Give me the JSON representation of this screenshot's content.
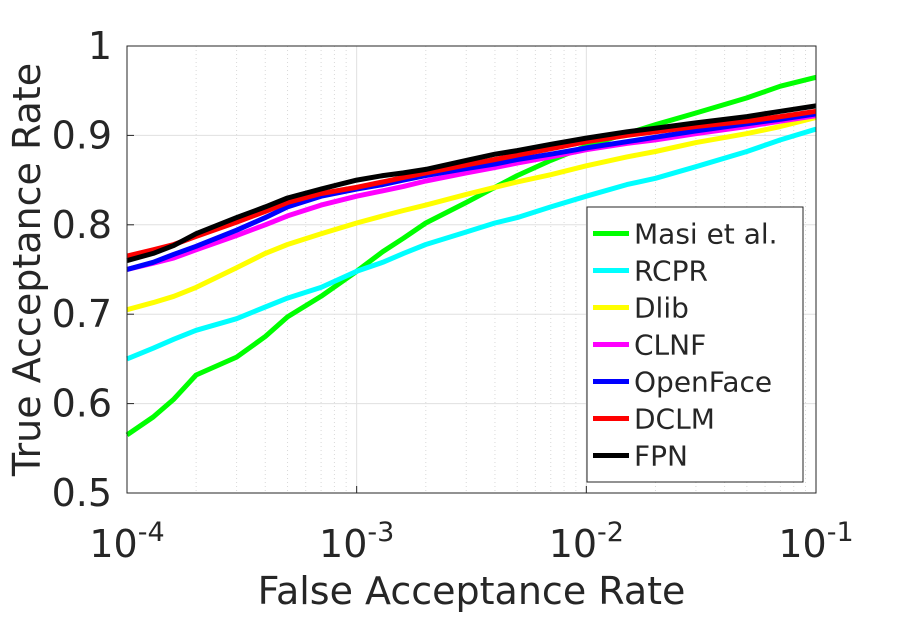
{
  "chart_data": {
    "type": "line",
    "title": "",
    "xlabel": "False Acceptance Rate",
    "ylabel": "True Acceptance Rate",
    "xscale": "log",
    "xlim": [
      0.0001,
      0.1
    ],
    "ylim": [
      0.5,
      1.0
    ],
    "grid": true,
    "legend_position": "bottom-right",
    "x_ticks": [
      {
        "value": 0.0001,
        "base": "10",
        "exp": "-4"
      },
      {
        "value": 0.001,
        "base": "10",
        "exp": "-3"
      },
      {
        "value": 0.01,
        "base": "10",
        "exp": "-2"
      },
      {
        "value": 0.1,
        "base": "10",
        "exp": "-1"
      }
    ],
    "y_ticks": [
      {
        "value": 0.5,
        "label": "0.5"
      },
      {
        "value": 0.6,
        "label": "0.6"
      },
      {
        "value": 0.7,
        "label": "0.7"
      },
      {
        "value": 0.8,
        "label": "0.8"
      },
      {
        "value": 0.9,
        "label": "0.9"
      },
      {
        "value": 1.0,
        "label": "1"
      }
    ],
    "series": [
      {
        "name": "Masi et al.",
        "color": "#00ff00",
        "x": [
          0.0001,
          0.00013,
          0.00016,
          0.0002,
          0.0003,
          0.0004,
          0.0005,
          0.0007,
          0.001,
          0.0013,
          0.0016,
          0.002,
          0.003,
          0.004,
          0.005,
          0.007,
          0.01,
          0.015,
          0.02,
          0.03,
          0.05,
          0.07,
          0.1
        ],
        "y": [
          0.565,
          0.585,
          0.605,
          0.632,
          0.652,
          0.675,
          0.697,
          0.72,
          0.748,
          0.77,
          0.785,
          0.802,
          0.825,
          0.842,
          0.855,
          0.872,
          0.888,
          0.902,
          0.912,
          0.925,
          0.942,
          0.955,
          0.965
        ]
      },
      {
        "name": "RCPR",
        "color": "#00ffff",
        "x": [
          0.0001,
          0.00013,
          0.00016,
          0.0002,
          0.0003,
          0.0004,
          0.0005,
          0.0007,
          0.001,
          0.0013,
          0.0016,
          0.002,
          0.003,
          0.004,
          0.005,
          0.007,
          0.01,
          0.015,
          0.02,
          0.03,
          0.05,
          0.07,
          0.1
        ],
        "y": [
          0.65,
          0.662,
          0.672,
          0.682,
          0.695,
          0.708,
          0.718,
          0.73,
          0.748,
          0.758,
          0.768,
          0.778,
          0.792,
          0.802,
          0.808,
          0.82,
          0.832,
          0.845,
          0.852,
          0.865,
          0.882,
          0.895,
          0.907
        ]
      },
      {
        "name": "Dlib",
        "color": "#ffff00",
        "x": [
          0.0001,
          0.00013,
          0.00016,
          0.0002,
          0.0003,
          0.0004,
          0.0005,
          0.0007,
          0.001,
          0.0013,
          0.0016,
          0.002,
          0.003,
          0.004,
          0.005,
          0.007,
          0.01,
          0.015,
          0.02,
          0.03,
          0.05,
          0.07,
          0.1
        ],
        "y": [
          0.705,
          0.713,
          0.72,
          0.73,
          0.752,
          0.768,
          0.778,
          0.79,
          0.802,
          0.81,
          0.816,
          0.822,
          0.834,
          0.842,
          0.848,
          0.856,
          0.866,
          0.876,
          0.882,
          0.892,
          0.902,
          0.91,
          0.92
        ]
      },
      {
        "name": "CLNF",
        "color": "#ff00ff",
        "x": [
          0.0001,
          0.00013,
          0.00016,
          0.0002,
          0.0003,
          0.0004,
          0.0005,
          0.0007,
          0.001,
          0.0013,
          0.0016,
          0.002,
          0.003,
          0.004,
          0.005,
          0.007,
          0.01,
          0.015,
          0.02,
          0.03,
          0.05,
          0.07,
          0.1
        ],
        "y": [
          0.75,
          0.757,
          0.763,
          0.772,
          0.788,
          0.8,
          0.81,
          0.822,
          0.832,
          0.838,
          0.843,
          0.849,
          0.858,
          0.864,
          0.869,
          0.876,
          0.884,
          0.891,
          0.895,
          0.902,
          0.91,
          0.916,
          0.922
        ]
      },
      {
        "name": "OpenFace",
        "color": "#0000ff",
        "x": [
          0.0001,
          0.00013,
          0.00016,
          0.0002,
          0.0003,
          0.0004,
          0.0005,
          0.0007,
          0.001,
          0.0013,
          0.0016,
          0.002,
          0.003,
          0.004,
          0.005,
          0.007,
          0.01,
          0.015,
          0.02,
          0.03,
          0.05,
          0.07,
          0.1
        ],
        "y": [
          0.75,
          0.758,
          0.767,
          0.776,
          0.794,
          0.808,
          0.82,
          0.832,
          0.84,
          0.845,
          0.85,
          0.855,
          0.863,
          0.868,
          0.873,
          0.879,
          0.886,
          0.893,
          0.898,
          0.905,
          0.913,
          0.918,
          0.924
        ]
      },
      {
        "name": "DCLM",
        "color": "#ff0000",
        "x": [
          0.0001,
          0.00013,
          0.00016,
          0.0002,
          0.0003,
          0.0004,
          0.0005,
          0.0007,
          0.001,
          0.0013,
          0.0016,
          0.002,
          0.003,
          0.004,
          0.005,
          0.007,
          0.01,
          0.015,
          0.02,
          0.03,
          0.05,
          0.07,
          0.1
        ],
        "y": [
          0.765,
          0.772,
          0.778,
          0.787,
          0.803,
          0.815,
          0.825,
          0.835,
          0.842,
          0.848,
          0.853,
          0.858,
          0.867,
          0.873,
          0.878,
          0.885,
          0.893,
          0.9,
          0.904,
          0.91,
          0.916,
          0.921,
          0.927
        ]
      },
      {
        "name": "FPN",
        "color": "#000000",
        "x": [
          0.0001,
          0.00013,
          0.00016,
          0.0002,
          0.0003,
          0.0004,
          0.0005,
          0.0007,
          0.001,
          0.0013,
          0.0016,
          0.002,
          0.003,
          0.004,
          0.005,
          0.007,
          0.01,
          0.015,
          0.02,
          0.03,
          0.05,
          0.07,
          0.1
        ],
        "y": [
          0.76,
          0.768,
          0.777,
          0.79,
          0.808,
          0.82,
          0.83,
          0.84,
          0.85,
          0.855,
          0.858,
          0.862,
          0.872,
          0.879,
          0.883,
          0.89,
          0.897,
          0.904,
          0.908,
          0.914,
          0.921,
          0.927,
          0.933
        ]
      }
    ]
  }
}
